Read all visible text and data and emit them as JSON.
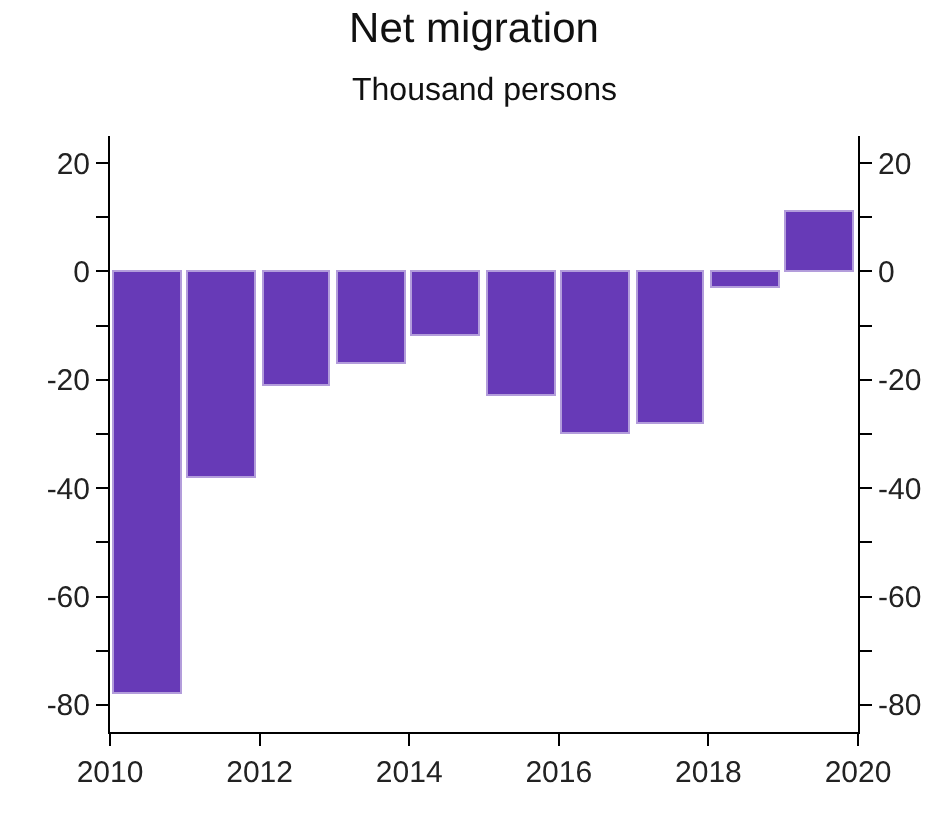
{
  "chart_data": {
    "type": "bar",
    "title": "Net migration",
    "subtitle": "Thousand persons",
    "x": [
      2010.5,
      2011.5,
      2012.5,
      2013.5,
      2014.5,
      2015.5,
      2016.5,
      2017.5,
      2018.5,
      2019.5
    ],
    "series": [
      {
        "color": "#673ab7",
        "values": [
          -78,
          -38,
          -21,
          -17,
          -12,
          -23,
          -30,
          -28,
          -3,
          11
        ]
      }
    ],
    "xlim": [
      2010,
      2020
    ],
    "xticks": [
      2010,
      2012,
      2014,
      2016,
      2018,
      2020
    ],
    "ylim": [
      -85,
      25
    ],
    "yticks": [
      -80,
      {
        "value": -70,
        "label": null
      },
      -60,
      {
        "value": -50,
        "label": null
      },
      -40,
      {
        "value": -30,
        "label": null
      },
      -20,
      {
        "value": -10,
        "label": null
      },
      0,
      {
        "value": 10,
        "label": null
      },
      20
    ],
    "y2lim": [
      -85,
      25
    ],
    "y2ticks": [
      -80,
      {
        "value": -70,
        "label": null
      },
      -60,
      {
        "value": -50,
        "label": null
      },
      -40,
      {
        "value": -30,
        "label": null
      },
      -20,
      {
        "value": -10,
        "label": null
      },
      0,
      {
        "value": 10,
        "label": null
      },
      20
    ],
    "tick_labels": [
      "x",
      "y",
      "y2"
    ]
  }
}
